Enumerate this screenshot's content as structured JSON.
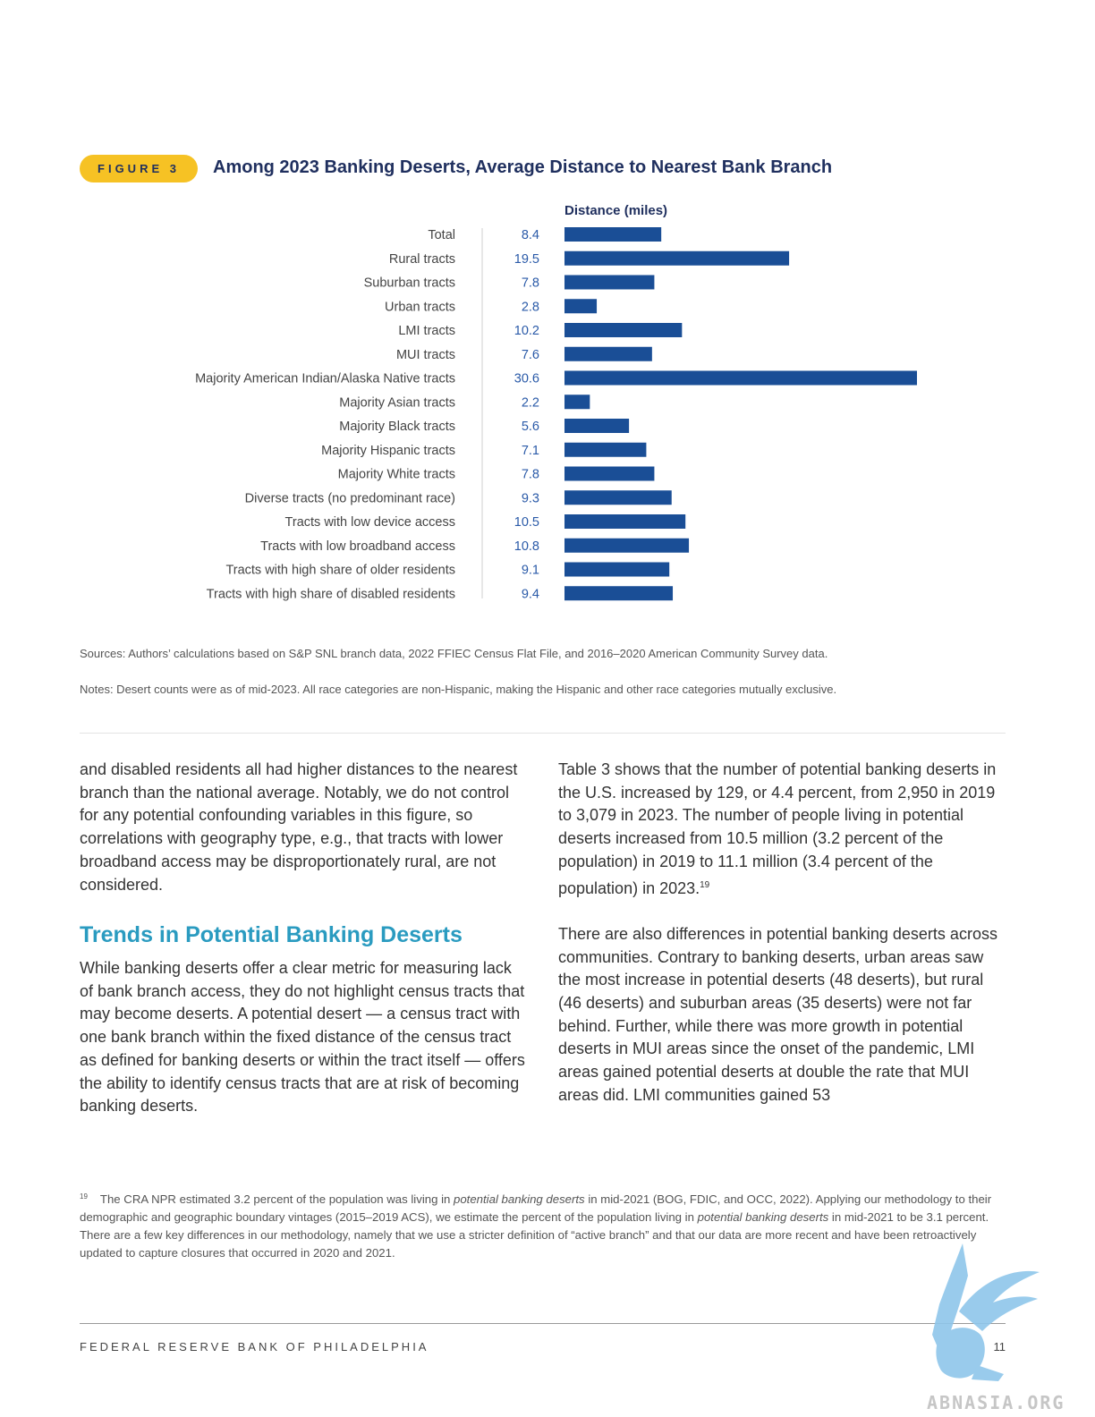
{
  "figure": {
    "badge": "FIGURE 3",
    "title": "Among 2023 Banking Deserts, Average Distance to Nearest Bank Branch"
  },
  "chart_data": {
    "type": "bar",
    "orientation": "horizontal",
    "value_header": "Distance (miles)",
    "categories": [
      "Total",
      "Rural tracts",
      "Suburban tracts",
      "Urban tracts",
      "LMI tracts",
      "MUI tracts",
      "Majority American Indian/Alaska Native tracts",
      "Majority Asian tracts",
      "Majority Black tracts",
      "Majority Hispanic tracts",
      "Majority White tracts",
      "Diverse tracts (no predominant race)",
      "Tracts with low device access",
      "Tracts with low broadband access",
      "Tracts with high share of older residents",
      "Tracts with high share of disabled residents"
    ],
    "values": [
      8.4,
      19.5,
      7.8,
      2.8,
      10.2,
      7.6,
      30.6,
      2.2,
      5.6,
      7.1,
      7.8,
      9.3,
      10.5,
      10.8,
      9.1,
      9.4
    ],
    "value_labels": [
      "8.4",
      "19.5",
      "7.8",
      "2.8",
      "10.2",
      "7.6",
      "30.6",
      "2.2",
      "5.6",
      "7.1",
      "7.8",
      "9.3",
      "10.5",
      "10.8",
      "9.1",
      "9.4"
    ],
    "bar_color": "#1a4e96",
    "label_color": "#2a5aa8",
    "xlim": [
      0,
      30.6
    ]
  },
  "sources": "Sources: Authors’ calculations based on S&P SNL branch data, 2022 FFIEC Census Flat File, and 2016–2020 American Community Survey data.",
  "notes": "Notes: Desert counts were as of mid-2023. All race categories are non-Hispanic, making the Hispanic and other race categories mutually exclusive.",
  "body": {
    "left_p1": "and disabled residents all had higher distances to the nearest branch than the national average. Notably, we do not control for any potential confounding variables in this figure, so correlations with geography type, e.g., that tracts with lower broadband access may be disproportionately rural, are not considered.",
    "heading": "Trends in Potential Banking Deserts",
    "left_p2": "While banking deserts offer a clear metric for measuring lack of bank branch access, they do not highlight census tracts that may become deserts. A potential desert — a census tract with one bank branch within the fixed distance of the census tract as defined for banking deserts or within the tract itself — offers the ability to identify census tracts that are at risk of becoming banking deserts.",
    "right_p1": "Table 3 shows that the number of potential banking deserts in the U.S. increased by 129, or 4.4 percent, from 2,950 in 2019 to 3,079 in 2023. The number of people living in potential deserts increased from 10.5 million (3.2 percent of the population) in 2019 to 11.1 million (3.4 percent of the population) in 2023.",
    "right_p1_sup": "19",
    "right_p2": "There are also differences in potential banking deserts across communities. Contrary to banking deserts, urban areas saw the most increase in potential deserts (48 deserts), but rural (46 deserts) and suburban areas (35 deserts) were not far behind. Further, while there was more growth in potential deserts in MUI areas since the onset of the pandemic, LMI areas gained potential deserts at double the rate that MUI areas did. LMI communities gained 53"
  },
  "footnote": {
    "number": "19",
    "t1": "The CRA NPR estimated 3.2 percent of the population was living in ",
    "i1": "potential banking deserts",
    "t2": " in mid-2021 (BOG, FDIC, and OCC, 2022). Applying our methodology to their demographic and geographic boundary vintages (2015–2019 ACS), we estimate the percent of the population living in ",
    "i2": "potential banking deserts",
    "t3": " in mid-2021 to be 3.1 percent. There are a few key differences in our methodology, namely that we use a stricter definition of “active branch” and that our data are more recent and have been retroactively updated to capture closures that occurred in 2020 and 2021."
  },
  "footer": {
    "org": "FEDERAL RESERVE BANK OF PHILADELPHIA",
    "page": "11"
  },
  "watermark": {
    "text": "ABNASIA.ORG",
    "icon": "griffin-logo-icon",
    "color": "#8ec6ea"
  }
}
